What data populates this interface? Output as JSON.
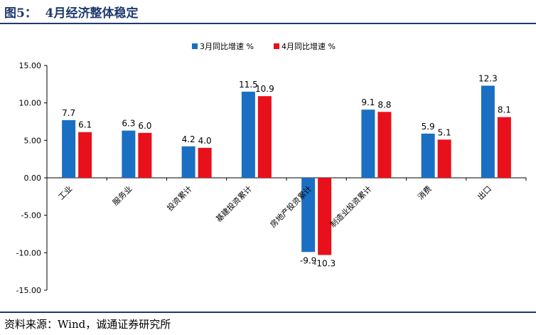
{
  "header": {
    "title": "图5：  4月经济整体稳定"
  },
  "footer": {
    "source": "资料来源：Wind，诚通证券研究所"
  },
  "colors": {
    "series1": "#1b6fc2",
    "series2": "#e8101a",
    "axis": "#000000",
    "brand": "#1f3a6e"
  },
  "chart_data": {
    "type": "bar",
    "title": "",
    "xlabel": "",
    "ylabel": "",
    "ylim": [
      -15,
      15
    ],
    "yticks": [
      "15.00",
      "10.00",
      "5.00",
      "0.00",
      "-5.00",
      "-10.00",
      "-15.00"
    ],
    "grid": false,
    "legend_position": "top-center",
    "categories": [
      "工业",
      "服务业",
      "投资累计",
      "基建投资累计",
      "房地产投资累计",
      "制造业投资累计",
      "消费",
      "出口"
    ],
    "series": [
      {
        "name": "3月同比增速 %",
        "values": [
          7.7,
          6.3,
          4.2,
          11.5,
          -9.9,
          9.1,
          5.9,
          12.3
        ],
        "labels": [
          "7.7",
          "6.3",
          "4.2",
          "11.5",
          "-9.9",
          "9.1",
          "5.9",
          "12.3"
        ]
      },
      {
        "name": "4月同比增速 %",
        "values": [
          6.1,
          6.0,
          4.0,
          10.9,
          -10.3,
          8.8,
          5.1,
          8.1
        ],
        "labels": [
          "6.1",
          "6.0",
          "4.0",
          "10.9",
          "-10.3",
          "8.8",
          "5.1",
          "8.1"
        ]
      }
    ]
  }
}
